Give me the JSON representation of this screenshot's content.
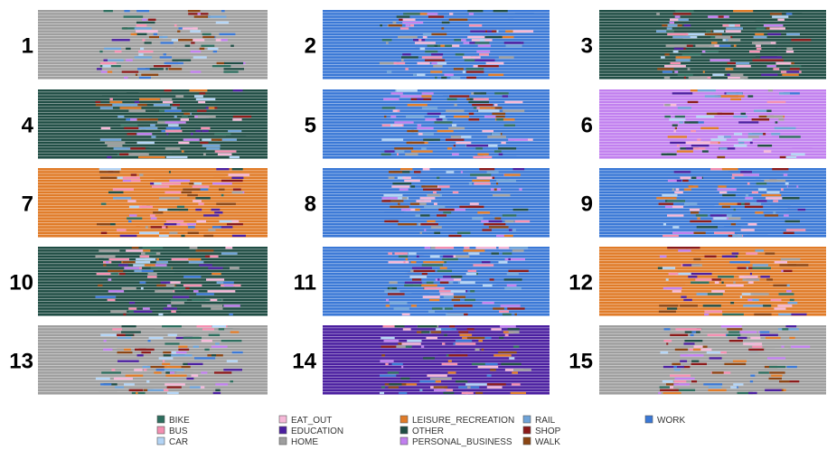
{
  "chart_data": {
    "type": "sequence_index_plot",
    "panels": [
      {
        "label": "1",
        "dominant_state": "HOME"
      },
      {
        "label": "2",
        "dominant_state": "WORK"
      },
      {
        "label": "3",
        "dominant_state": "OTHER"
      },
      {
        "label": "4",
        "dominant_state": "OTHER"
      },
      {
        "label": "5",
        "dominant_state": "WORK"
      },
      {
        "label": "6",
        "dominant_state": "PERSONAL_BUSINESS"
      },
      {
        "label": "7",
        "dominant_state": "LEISURE_RECREATION"
      },
      {
        "label": "8",
        "dominant_state": "WORK"
      },
      {
        "label": "9",
        "dominant_state": "WORK"
      },
      {
        "label": "10",
        "dominant_state": "OTHER"
      },
      {
        "label": "11",
        "dominant_state": "WORK"
      },
      {
        "label": "12",
        "dominant_state": "LEISURE_RECREATION"
      },
      {
        "label": "13",
        "dominant_state": "HOME"
      },
      {
        "label": "14",
        "dominant_state": "EDUCATION"
      },
      {
        "label": "15",
        "dominant_state": "HOME"
      }
    ],
    "legend": [
      {
        "name": "BIKE",
        "color": "#2d6e5e"
      },
      {
        "name": "BUS",
        "color": "#f48fb1"
      },
      {
        "name": "CAR",
        "color": "#b3d4f5"
      },
      {
        "name": "EAT_OUT",
        "color": "#f6b8d8"
      },
      {
        "name": "EDUCATION",
        "color": "#4b1fa0"
      },
      {
        "name": "HOME",
        "color": "#9e9e9e"
      },
      {
        "name": "LEISURE_RECREATION",
        "color": "#e07b28"
      },
      {
        "name": "OTHER",
        "color": "#1f4d44"
      },
      {
        "name": "PERSONAL_BUSINESS",
        "color": "#c17fef"
      },
      {
        "name": "RAIL",
        "color": "#6ea3d8"
      },
      {
        "name": "SHOP",
        "color": "#8b1a1a"
      },
      {
        "name": "WALK",
        "color": "#8b4513"
      },
      {
        "name": "WORK",
        "color": "#3a78d6"
      }
    ]
  }
}
